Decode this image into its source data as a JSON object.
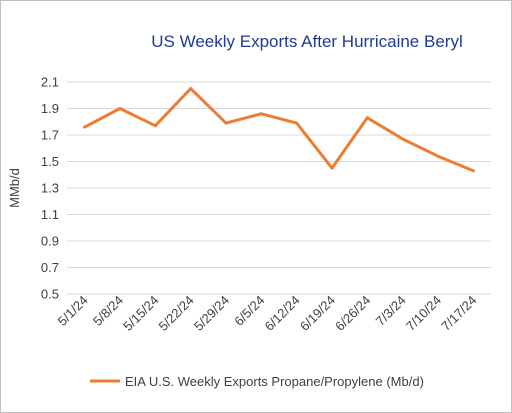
{
  "chart_data": {
    "type": "line",
    "title": "US Weekly Exports After Hurricaine Beryl",
    "xlabel": "",
    "ylabel": "MMb/d",
    "categories": [
      "5/1/24",
      "5/8/24",
      "5/15/24",
      "5/22/24",
      "5/29/24",
      "6/5/24",
      "6/12/24",
      "6/19/24",
      "6/26/24",
      "7/3/24",
      "7/10/24",
      "7/17/24"
    ],
    "series": [
      {
        "name": "EIA U.S. Weekly Exports Propane/Propylene (Mb/d)",
        "color": "#ed7d31",
        "values": [
          1.76,
          1.9,
          1.77,
          2.05,
          1.79,
          1.86,
          1.79,
          1.45,
          1.83,
          1.67,
          1.54,
          1.43
        ]
      }
    ],
    "ylim": [
      0.5,
      2.1
    ],
    "yticks": [
      "0.5",
      "0.7",
      "0.9",
      "1.1",
      "1.3",
      "1.5",
      "1.7",
      "1.9",
      "2.1"
    ],
    "grid": true,
    "legend": "bottom"
  }
}
